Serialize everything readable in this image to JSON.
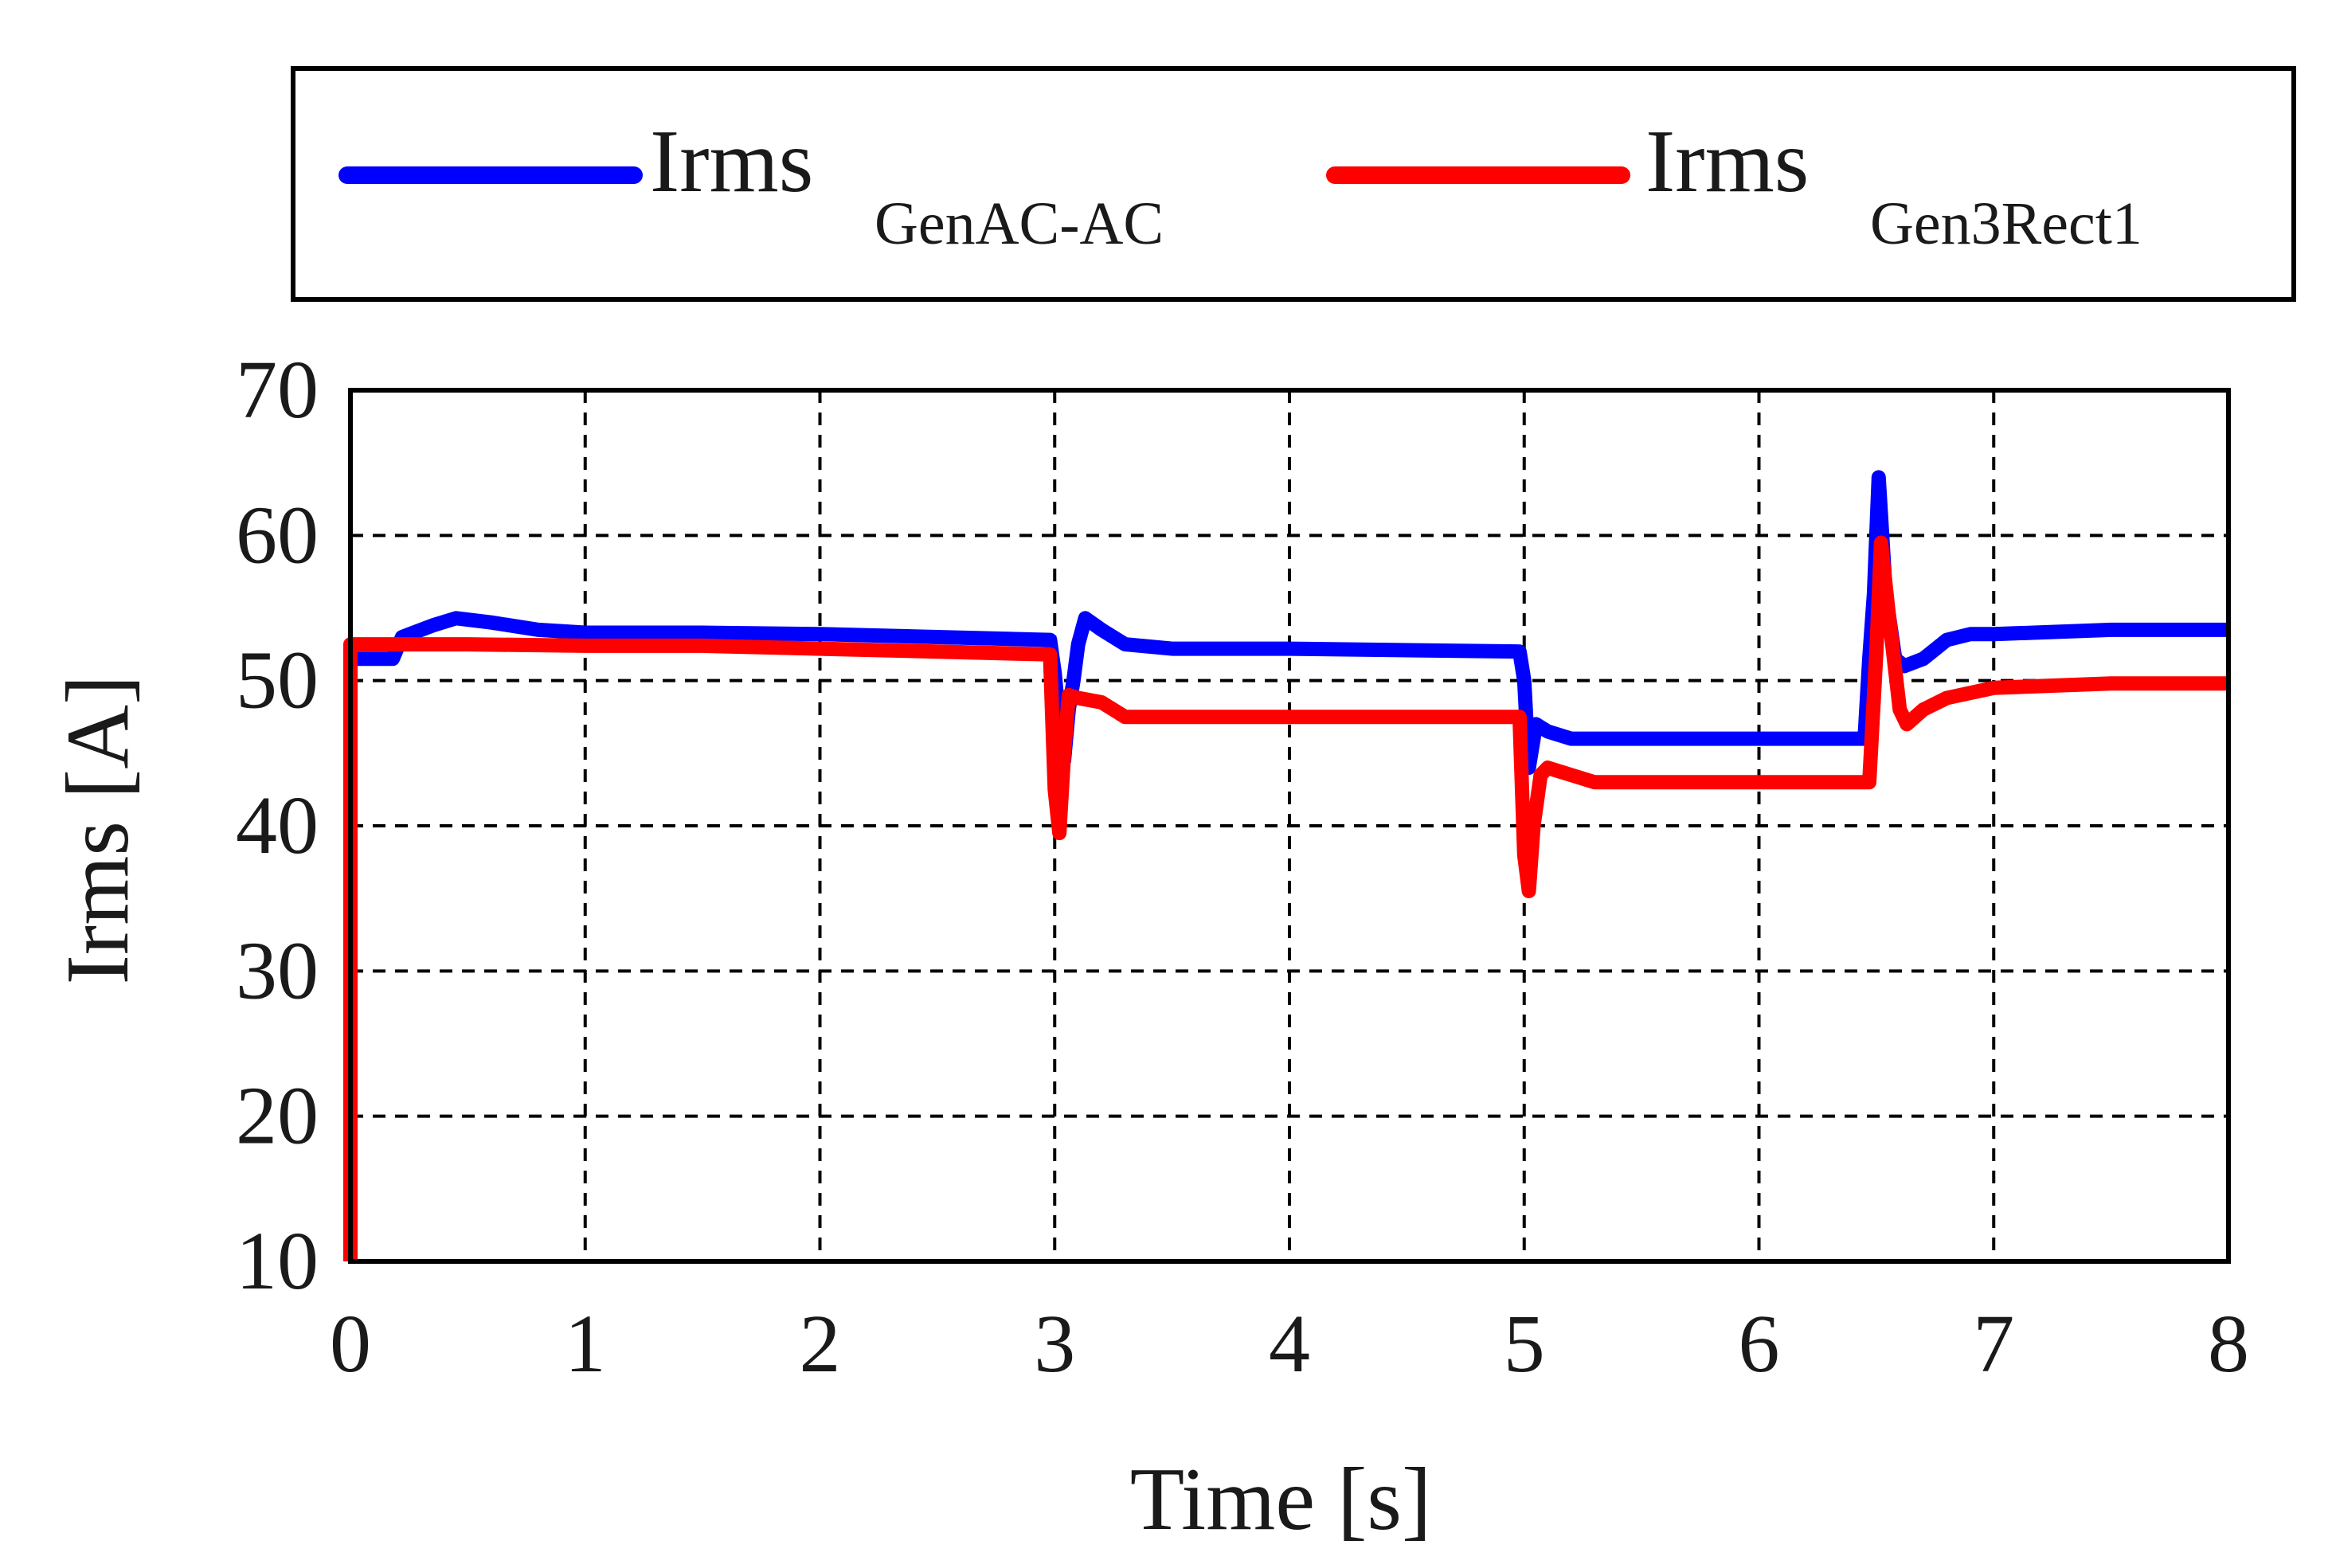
{
  "chart_data": {
    "type": "line",
    "title": "",
    "xlabel": "Time [s]",
    "ylabel": "Irms [A]",
    "xlim": [
      0,
      8
    ],
    "ylim": [
      10,
      70
    ],
    "xticks": [
      0,
      1,
      2,
      3,
      4,
      5,
      6,
      7,
      8
    ],
    "yticks": [
      10,
      20,
      30,
      40,
      50,
      60,
      70
    ],
    "grid": "dashed",
    "legend_position": "top",
    "series": [
      {
        "name": "Irms",
        "subscript": "GenAC-AC",
        "color": "#0000ff",
        "points": [
          [
            0.0,
            51.5
          ],
          [
            0.18,
            51.5
          ],
          [
            0.22,
            53.0
          ],
          [
            0.35,
            53.8
          ],
          [
            0.45,
            54.3
          ],
          [
            0.6,
            54.0
          ],
          [
            0.8,
            53.5
          ],
          [
            1.0,
            53.3
          ],
          [
            1.5,
            53.3
          ],
          [
            2.0,
            53.2
          ],
          [
            2.5,
            53.0
          ],
          [
            2.98,
            52.8
          ],
          [
            3.0,
            50.5
          ],
          [
            3.02,
            47.0
          ],
          [
            3.04,
            44.5
          ],
          [
            3.06,
            48.0
          ],
          [
            3.08,
            50.0
          ],
          [
            3.1,
            52.5
          ],
          [
            3.13,
            54.3
          ],
          [
            3.2,
            53.5
          ],
          [
            3.3,
            52.5
          ],
          [
            3.5,
            52.2
          ],
          [
            4.0,
            52.2
          ],
          [
            4.98,
            52.0
          ],
          [
            5.0,
            50.0
          ],
          [
            5.02,
            44.0
          ],
          [
            5.05,
            47.0
          ],
          [
            5.1,
            46.5
          ],
          [
            5.2,
            46.0
          ],
          [
            5.5,
            46.0
          ],
          [
            6.0,
            46.0
          ],
          [
            6.45,
            46.0
          ],
          [
            6.47,
            51.5
          ],
          [
            6.49,
            56.0
          ],
          [
            6.51,
            64.0
          ],
          [
            6.54,
            56.0
          ],
          [
            6.58,
            51.5
          ],
          [
            6.62,
            51.0
          ],
          [
            6.7,
            51.5
          ],
          [
            6.8,
            52.8
          ],
          [
            6.9,
            53.2
          ],
          [
            7.0,
            53.2
          ],
          [
            7.5,
            53.5
          ],
          [
            8.0,
            53.5
          ]
        ]
      },
      {
        "name": "Irms",
        "subscript": "Gen3Rect1",
        "color": "#ff0000",
        "points": [
          [
            0.0,
            10.0
          ],
          [
            0.0,
            52.5
          ],
          [
            0.5,
            52.5
          ],
          [
            1.0,
            52.4
          ],
          [
            1.5,
            52.4
          ],
          [
            2.0,
            52.2
          ],
          [
            2.5,
            52.0
          ],
          [
            2.98,
            51.8
          ],
          [
            3.0,
            42.5
          ],
          [
            3.02,
            39.5
          ],
          [
            3.04,
            45.0
          ],
          [
            3.06,
            49.0
          ],
          [
            3.1,
            48.8
          ],
          [
            3.2,
            48.5
          ],
          [
            3.3,
            47.5
          ],
          [
            4.0,
            47.5
          ],
          [
            4.98,
            47.5
          ],
          [
            5.0,
            38.0
          ],
          [
            5.02,
            35.5
          ],
          [
            5.04,
            40.0
          ],
          [
            5.07,
            43.5
          ],
          [
            5.1,
            44.0
          ],
          [
            5.2,
            43.5
          ],
          [
            5.3,
            43.0
          ],
          [
            6.0,
            43.0
          ],
          [
            6.47,
            43.0
          ],
          [
            6.5,
            52.0
          ],
          [
            6.52,
            59.5
          ],
          [
            6.55,
            55.0
          ],
          [
            6.6,
            48.0
          ],
          [
            6.63,
            47.0
          ],
          [
            6.7,
            48.0
          ],
          [
            6.8,
            48.8
          ],
          [
            7.0,
            49.5
          ],
          [
            7.5,
            49.8
          ],
          [
            8.0,
            49.8
          ]
        ]
      }
    ]
  }
}
